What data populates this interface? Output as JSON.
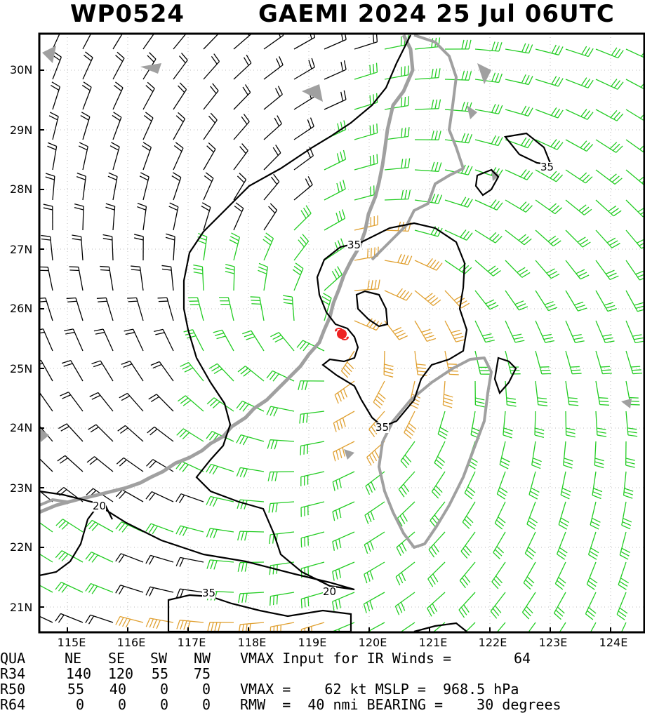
{
  "header": {
    "storm_id": "WP0524",
    "storm_title": "GAEMI 2024 25 Jul 06UTC"
  },
  "map": {
    "lat_labels": [
      "30N",
      "29N",
      "28N",
      "27N",
      "26N",
      "25N",
      "24N",
      "23N",
      "22N",
      "21N"
    ],
    "lon_labels": [
      "115E",
      "116E",
      "117E",
      "118E",
      "119E",
      "120E",
      "121E",
      "122E",
      "123E",
      "124E"
    ],
    "contour_labels": [
      "35",
      "35",
      "35",
      "35",
      "20",
      "20"
    ],
    "colors": {
      "weak_barbs": "#000000",
      "gale_barbs": "#22cc22",
      "storm_barbs": "#e0a030",
      "coastline": "#a0a0a0",
      "contour": "#000000",
      "center_marker": "#ee2222"
    },
    "icons": {
      "center": "typhoon-symbol-icon"
    }
  },
  "table": {
    "header": [
      "QUA",
      "NE",
      "SE",
      "SW",
      "NW"
    ],
    "rows": [
      {
        "label": "R34",
        "values": [
          "140",
          "120",
          "55",
          "75"
        ]
      },
      {
        "label": "R50",
        "values": [
          "55",
          "40",
          "0",
          "0"
        ]
      },
      {
        "label": "R64",
        "values": [
          "0",
          "0",
          "0",
          "0"
        ]
      }
    ],
    "vmax_input_text": "VMAX Input for IR Winds =",
    "vmax_input_value": "64",
    "vmax_line": "VMAX =    62 kt MSLP =  968.5 hPa",
    "rmw_line": "RMW  =  40 nmi BEARING =    30 degrees"
  }
}
